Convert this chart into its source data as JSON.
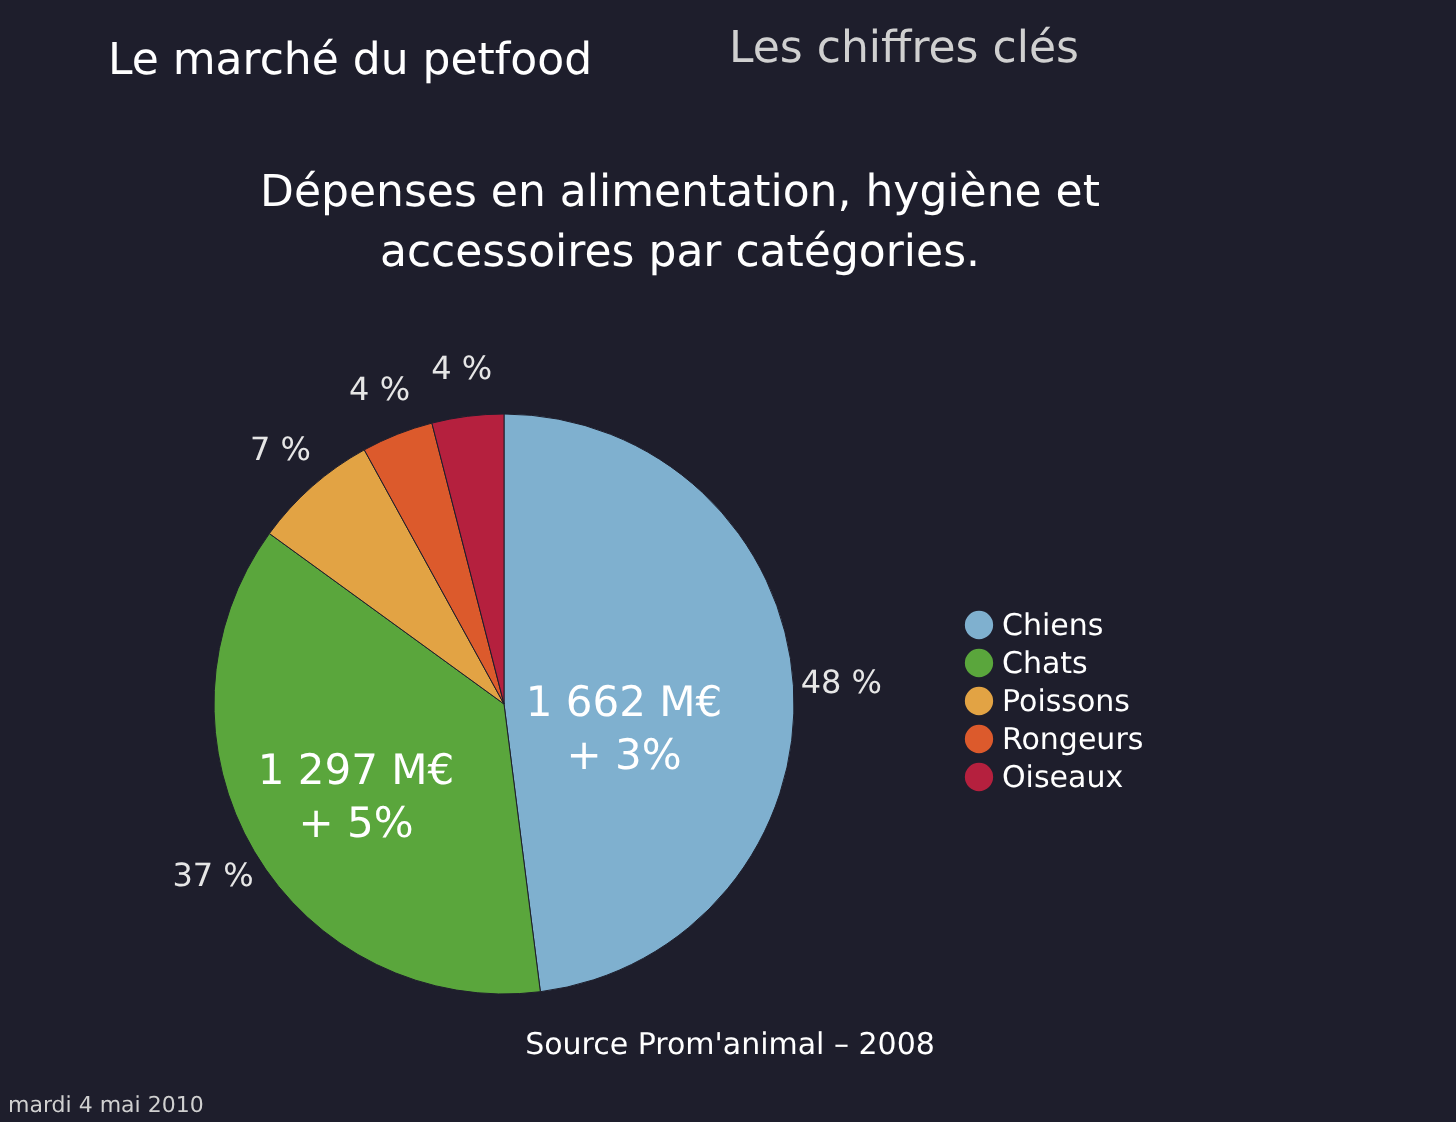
{
  "chart_data": {
    "type": "pie",
    "title": "Dépenses en alimentation, hygiène et accessoires par catégories.",
    "categories": [
      "Chiens",
      "Chats",
      "Poissons",
      "Rongeurs",
      "Oiseaux"
    ],
    "values": [
      48,
      37,
      7,
      4,
      4
    ],
    "colors": [
      "#7fb0cf",
      "#5aa63c",
      "#e2a344",
      "#dc5a2c",
      "#b5203e"
    ],
    "value_labels": [
      "48 %",
      "37 %",
      "7 %",
      "4 %",
      "4 %"
    ],
    "legend": "right",
    "annotations": [
      "Le marché du petfood",
      "Les chiffres clés",
      "1 662 M€\n+ 3%",
      "1 297 M€\n+ 5%",
      "Source Prom'animal – 2008",
      "mardi 4 mai 2010"
    ]
  }
}
